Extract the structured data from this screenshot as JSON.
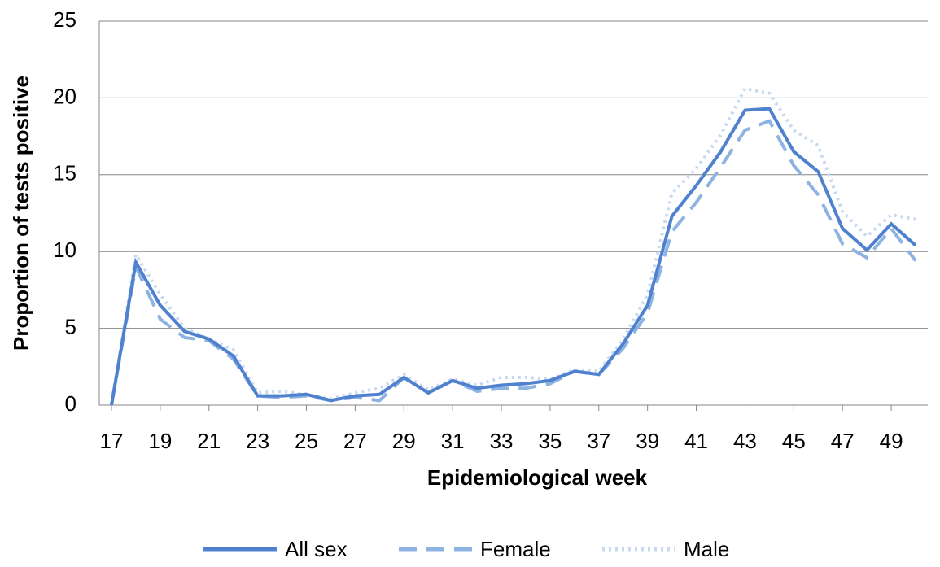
{
  "chart_data": {
    "type": "line",
    "xlabel": "Epidemiological week",
    "ylabel": "Proportion of tests positive",
    "x": [
      17,
      18,
      19,
      20,
      21,
      22,
      23,
      24,
      25,
      26,
      27,
      28,
      29,
      30,
      31,
      32,
      33,
      34,
      35,
      36,
      37,
      38,
      39,
      40,
      41,
      42,
      43,
      44,
      45,
      46,
      47,
      48,
      49,
      50
    ],
    "xlim": [
      16.5,
      50.5
    ],
    "xticks": [
      17,
      19,
      21,
      23,
      25,
      27,
      29,
      31,
      33,
      35,
      37,
      39,
      41,
      43,
      45,
      47,
      49
    ],
    "ylim": [
      0,
      25
    ],
    "yticks": [
      0,
      5,
      10,
      15,
      20,
      25
    ],
    "grid": true,
    "legend": "bottom",
    "series": [
      {
        "name": "All sex",
        "color": "#4f81cf",
        "style": "solid",
        "values": [
          0,
          9.3,
          6.5,
          4.8,
          4.3,
          3.2,
          0.6,
          0.6,
          0.7,
          0.3,
          0.6,
          0.7,
          1.8,
          0.8,
          1.6,
          1.1,
          1.3,
          1.4,
          1.6,
          2.2,
          2.0,
          4.0,
          6.5,
          12.3,
          14.3,
          16.5,
          19.2,
          19.3,
          16.5,
          15.2,
          11.5,
          10.1,
          11.8,
          10.4
        ]
      },
      {
        "name": "Female",
        "color": "#8db3e2",
        "style": "dashed",
        "values": [
          0,
          9.0,
          5.6,
          4.4,
          4.2,
          3.0,
          0.6,
          0.5,
          0.6,
          0.3,
          0.5,
          0.3,
          1.8,
          0.8,
          1.6,
          0.9,
          1.1,
          1.1,
          1.4,
          2.2,
          2.0,
          3.7,
          6.0,
          11.3,
          13.2,
          15.5,
          17.9,
          18.5,
          15.6,
          13.7,
          10.5,
          9.6,
          11.5,
          9.4
        ]
      },
      {
        "name": "Male",
        "color": "#c6d9f1",
        "style": "dotted",
        "values": [
          0,
          9.8,
          7.2,
          5.0,
          4.3,
          3.6,
          0.8,
          0.9,
          0.7,
          0.4,
          0.8,
          1.1,
          2.0,
          1.0,
          1.7,
          1.3,
          1.8,
          1.8,
          1.7,
          2.3,
          2.2,
          4.3,
          7.2,
          13.8,
          15.4,
          17.6,
          20.6,
          20.3,
          17.9,
          16.9,
          12.6,
          11.0,
          12.4,
          12.1
        ]
      }
    ]
  }
}
